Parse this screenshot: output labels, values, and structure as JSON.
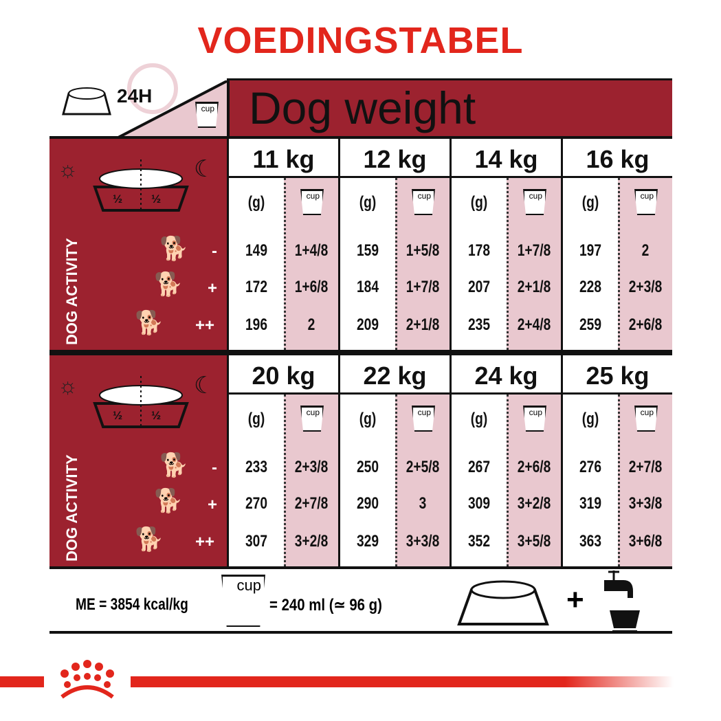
{
  "title": "VOEDINGSTABEL",
  "header": {
    "duration": "24H",
    "cup_label": "cup",
    "dog_weight": "Dog weight"
  },
  "side": {
    "activity_label": "DOG ACTIVITY",
    "half": "½",
    "levels": [
      "-",
      "+",
      "++"
    ]
  },
  "columns": {
    "grams": "(g)",
    "cup": "cup"
  },
  "colors": {
    "brand_red": "#e2261c",
    "panel_red": "#9c222f",
    "pink": "#e9c8cf"
  },
  "blocks": [
    {
      "weights": [
        {
          "label": "11 kg",
          "rows": [
            [
              "149",
              "1+4/8"
            ],
            [
              "172",
              "1+6/8"
            ],
            [
              "196",
              "2"
            ]
          ]
        },
        {
          "label": "12 kg",
          "rows": [
            [
              "159",
              "1+5/8"
            ],
            [
              "184",
              "1+7/8"
            ],
            [
              "209",
              "2+1/8"
            ]
          ]
        },
        {
          "label": "14 kg",
          "rows": [
            [
              "178",
              "1+7/8"
            ],
            [
              "207",
              "2+1/8"
            ],
            [
              "235",
              "2+4/8"
            ]
          ]
        },
        {
          "label": "16 kg",
          "rows": [
            [
              "197",
              "2"
            ],
            [
              "228",
              "2+3/8"
            ],
            [
              "259",
              "2+6/8"
            ]
          ]
        }
      ]
    },
    {
      "weights": [
        {
          "label": "20 kg",
          "rows": [
            [
              "233",
              "2+3/8"
            ],
            [
              "270",
              "2+7/8"
            ],
            [
              "307",
              "3+2/8"
            ]
          ]
        },
        {
          "label": "22 kg",
          "rows": [
            [
              "250",
              "2+5/8"
            ],
            [
              "290",
              "3"
            ],
            [
              "329",
              "3+3/8"
            ]
          ]
        },
        {
          "label": "24 kg",
          "rows": [
            [
              "267",
              "2+6/8"
            ],
            [
              "309",
              "3+2/8"
            ],
            [
              "352",
              "3+5/8"
            ]
          ]
        },
        {
          "label": "25 kg",
          "rows": [
            [
              "276",
              "2+7/8"
            ],
            [
              "319",
              "3+3/8"
            ],
            [
              "363",
              "3+6/8"
            ]
          ]
        }
      ]
    }
  ],
  "footer": {
    "energy": "ME = 3854 kcal/kg",
    "cup_label": "cup",
    "cup_equiv": "= 240 ml (≃ 96 g)",
    "plus": "+"
  }
}
